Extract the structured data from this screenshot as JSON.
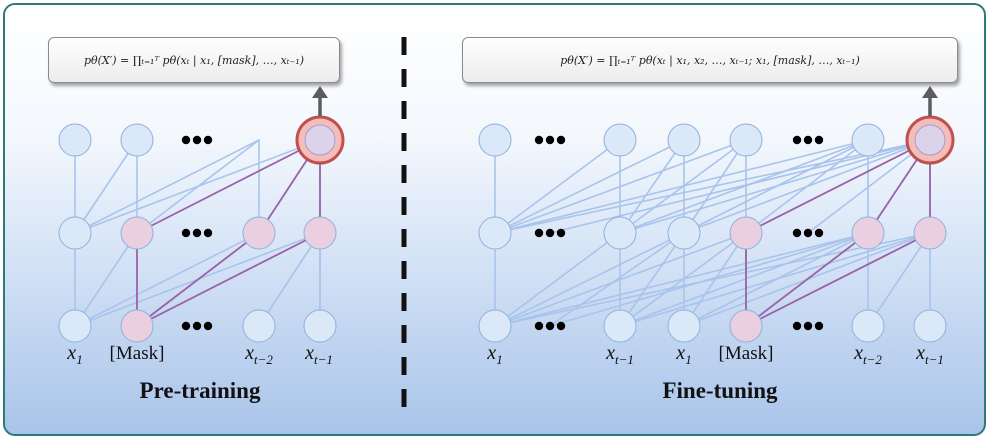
{
  "panels": {
    "left": {
      "formula": "pθ(X′) = ∏ₜ₌₁ᵀ pθ(xₜ | x₁, [mask], …, xₜ₋₁)",
      "title": "Pre-training",
      "labels": {
        "x1": "x",
        "x1_sub": "1",
        "mask": "[Mask]",
        "xt2": "x",
        "xt2_sub": "t−2",
        "xt1": "x",
        "xt1_sub": "t−1"
      }
    },
    "right": {
      "formula": "pθ(X′) = ∏ₜ₌₁ᵀ pθ(xₜ | x₁, x₂, …, xₜ₋₁; x₁, [mask], …, xₜ₋₁)",
      "title": "Fine-tuning",
      "labels": {
        "x1a": "x",
        "x1a_sub": "1",
        "xt1a": "x",
        "xt1a_sub": "t−1",
        "x1b": "x",
        "x1b_sub": "1",
        "mask": "[Mask]",
        "xt2": "x",
        "xt2_sub": "t−2",
        "xt1b": "x",
        "xt1b_sub": "t−1"
      }
    }
  },
  "colors": {
    "node_blue": "#dbe8f8",
    "node_pink": "#e9cfe0",
    "edge_blue": "#a9c4ec",
    "edge_purple": "#9a62a8",
    "highlight_ring": "#c0504d",
    "highlight_fill": "#f4bdb9",
    "frame": "#2e7a78",
    "arrow": "#5d5d5d"
  },
  "icons": [
    "ellipsis-dots",
    "up-arrow",
    "dashed-divider"
  ]
}
